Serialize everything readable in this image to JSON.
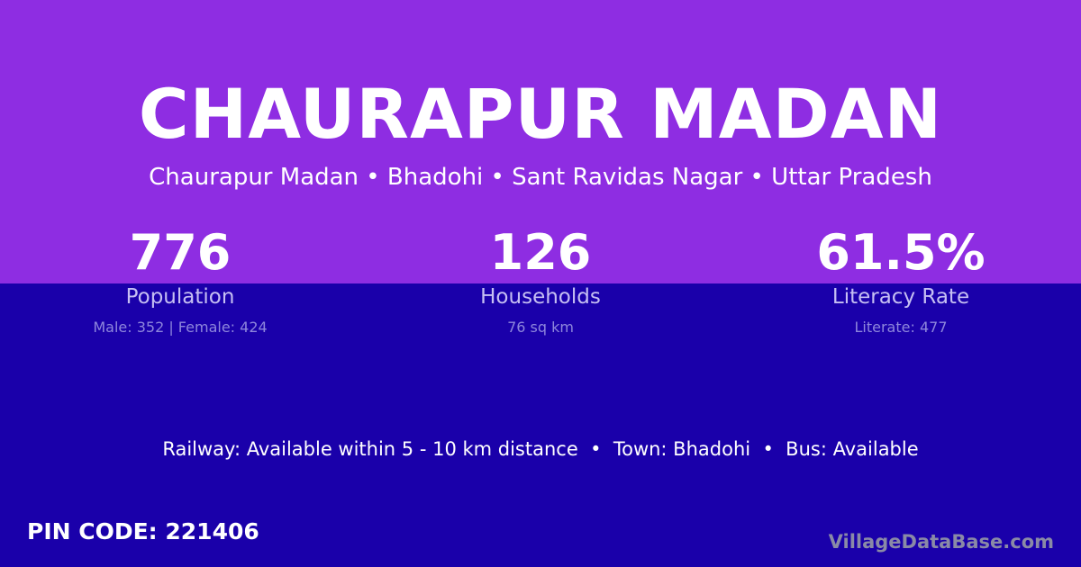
{
  "title": "CHAURAPUR MADAN",
  "subtitle": "Chaurapur Madan • Bhadohi • Sant Ravidas Nagar • Uttar Pradesh",
  "stats": [
    {
      "value": "776",
      "label": "Population",
      "detail": "Male: 352 | Female: 424"
    },
    {
      "value": "126",
      "label": "Households",
      "detail": "76 sq km"
    },
    {
      "value": "61.5%",
      "label": "Literacy Rate",
      "detail": "Literate: 477"
    }
  ],
  "facts": "Railway: Available within 5 - 10 km distance  •  Town: Bhadohi  •  Bus: Available",
  "pin_code": "PIN CODE: 221406",
  "brand": "VillageDataBase.com",
  "colors": {
    "top_band": "#8e2de2",
    "bottom_band": "#1a00aa"
  }
}
